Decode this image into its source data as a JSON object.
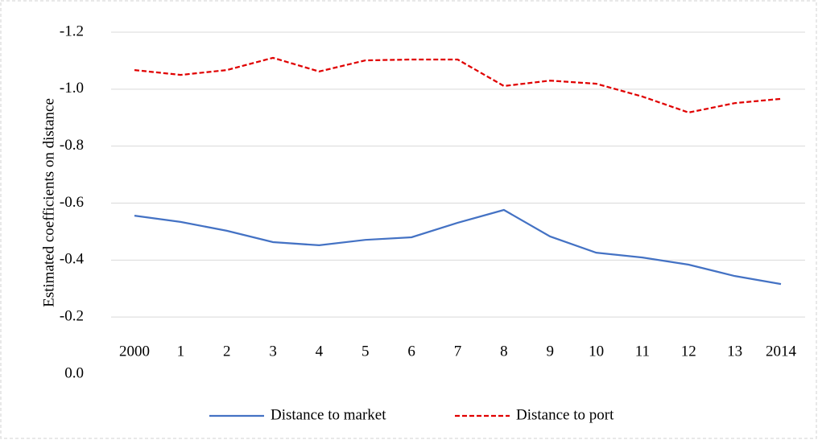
{
  "chart_data": {
    "type": "line",
    "y_label": "Estimated coefficients on distance",
    "categories": [
      "2000",
      "1",
      "2",
      "3",
      "4",
      "5",
      "6",
      "7",
      "8",
      "9",
      "10",
      "11",
      "12",
      "13",
      "2014"
    ],
    "series": [
      {
        "name": "Distance to market",
        "color": "#4472c4",
        "dash": "solid",
        "values": [
          -0.556,
          -0.534,
          -0.503,
          -0.463,
          -0.452,
          -0.471,
          -0.48,
          -0.531,
          -0.576,
          -0.483,
          -0.426,
          -0.409,
          -0.384,
          -0.344,
          -0.316
        ]
      },
      {
        "name": "Distance to port",
        "color": "#e00000",
        "dash": "dashed",
        "values": [
          -1.067,
          -1.05,
          -1.067,
          -1.11,
          -1.062,
          -1.101,
          -1.104,
          -1.104,
          -1.011,
          -1.03,
          -1.019,
          -0.974,
          -0.918,
          -0.951,
          -0.966
        ]
      }
    ],
    "ylim": [
      0,
      -1.2
    ],
    "yticks": [
      {
        "value": 0,
        "label": "0.0"
      },
      -0.2,
      -0.4,
      -0.6,
      -0.8,
      {
        "value": -1,
        "label": "-1.0"
      },
      -1.2
    ],
    "grid": true,
    "legend": "bottom"
  }
}
